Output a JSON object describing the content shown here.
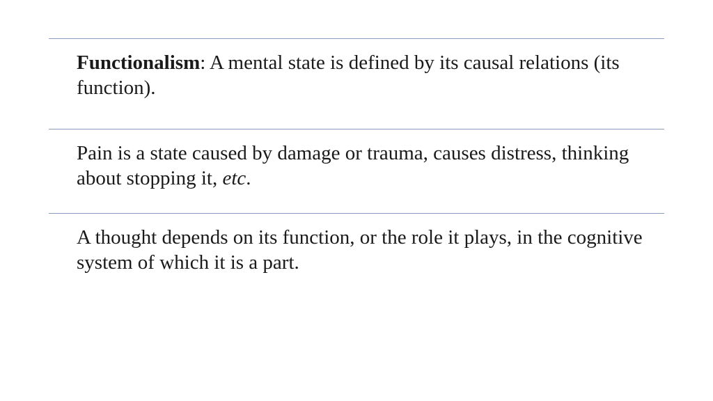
{
  "colors": {
    "background": "#ffffff",
    "rule": "#8a9bc4",
    "text": "#1a1a1a"
  },
  "typography": {
    "font_family": "Times New Roman",
    "font_size_pt": 22,
    "line_height": 1.25
  },
  "blocks": [
    {
      "term_bold": "Functionalism",
      "after_term": ": A mental state is defined by its causal relations (its function)."
    },
    {
      "plain_before": "Pain is a state caused by damage or trauma, causes distress, thinking about stopping it, ",
      "italic": "etc",
      "plain_after": "."
    },
    {
      "plain": "A thought depends on its function, or the role it plays, in the cognitive system of which it is a part."
    }
  ]
}
